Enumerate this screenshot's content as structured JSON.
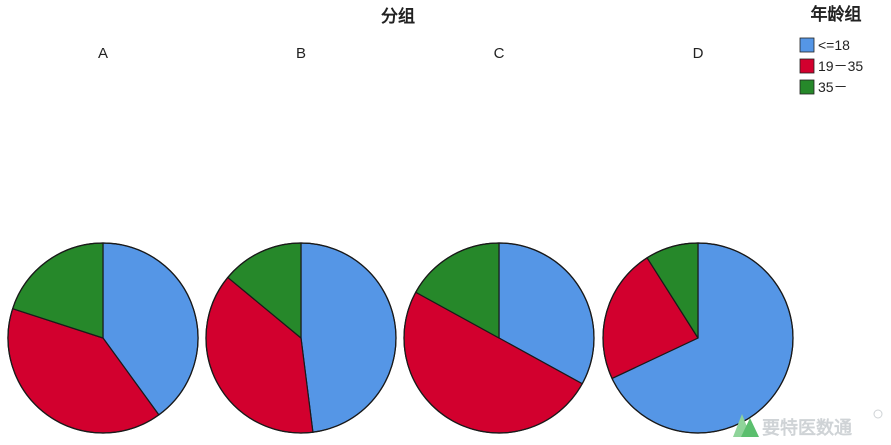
{
  "chart_data": {
    "type": "pie",
    "title": "分组",
    "legend": {
      "title": "年龄组",
      "position": "top-right",
      "entries": [
        {
          "label": "<=18",
          "color": "#5596e6"
        },
        {
          "label": "19－35",
          "color": "#d2002e"
        },
        {
          "label": "35－",
          "color": "#26882a"
        }
      ]
    },
    "panels": [
      {
        "name": "A",
        "values": [
          0.4,
          0.4,
          0.2
        ]
      },
      {
        "name": "B",
        "values": [
          0.48,
          0.38,
          0.14
        ]
      },
      {
        "name": "C",
        "values": [
          0.33,
          0.5,
          0.17
        ]
      },
      {
        "name": "D",
        "values": [
          0.68,
          0.23,
          0.09
        ]
      }
    ]
  },
  "watermark": {
    "text": "要特医数通"
  }
}
